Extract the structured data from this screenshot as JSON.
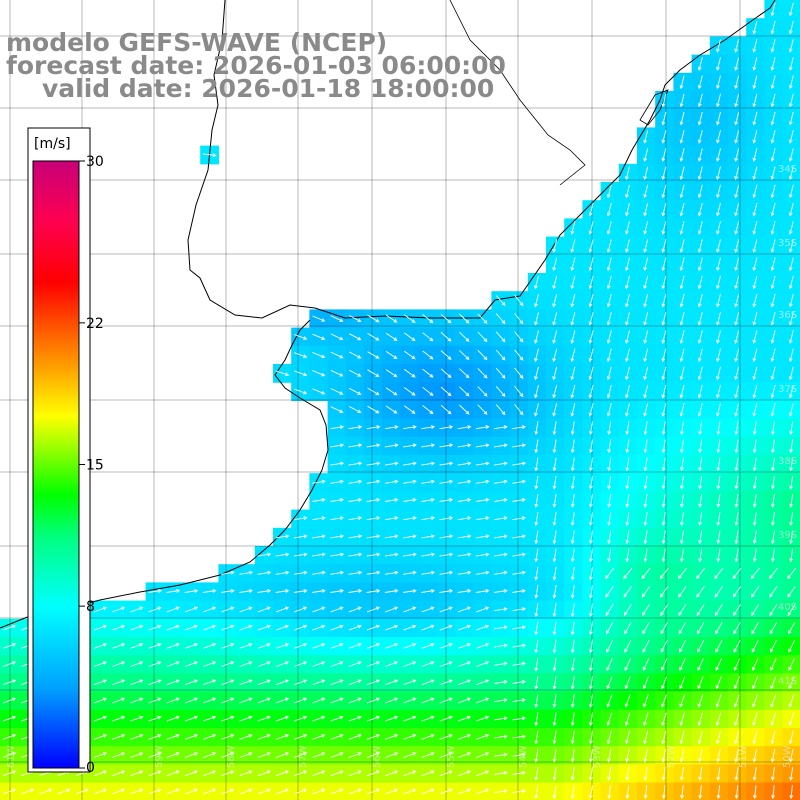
{
  "title": {
    "line1": "modelo GEFS-WAVE (NCEP)",
    "line2": "forecast date: 2026-01-03 06:00:00",
    "line3": "valid date: 2026-01-18 18:00:00"
  },
  "colorbar": {
    "unit": "[m/s]",
    "ticks": [
      "30",
      "22",
      "15",
      "8",
      "0"
    ],
    "tick_values": [
      30,
      22,
      15,
      8,
      0
    ],
    "colors": [
      "#0000ff",
      "#00a0ff",
      "#00ffff",
      "#00ff90",
      "#00ff00",
      "#80ff00",
      "#ffff00",
      "#ffa000",
      "#ff4000",
      "#ff0000",
      "#ff0050",
      "#c80078"
    ]
  },
  "map": {
    "variable": "wind speed and direction",
    "lat_labels": [
      "34S",
      "35S",
      "36S",
      "37S",
      "38S",
      "39S",
      "40S",
      "41S"
    ],
    "lon_labels": [
      "61W",
      "60W",
      "59W",
      "58W",
      "57W",
      "56W",
      "55W",
      "54W",
      "53W",
      "52W",
      "51W",
      "50W"
    ],
    "colors": {
      "land": "#ffffff",
      "grid": "#000000",
      "coast": "#000000",
      "arrow": "#ffffff"
    }
  }
}
